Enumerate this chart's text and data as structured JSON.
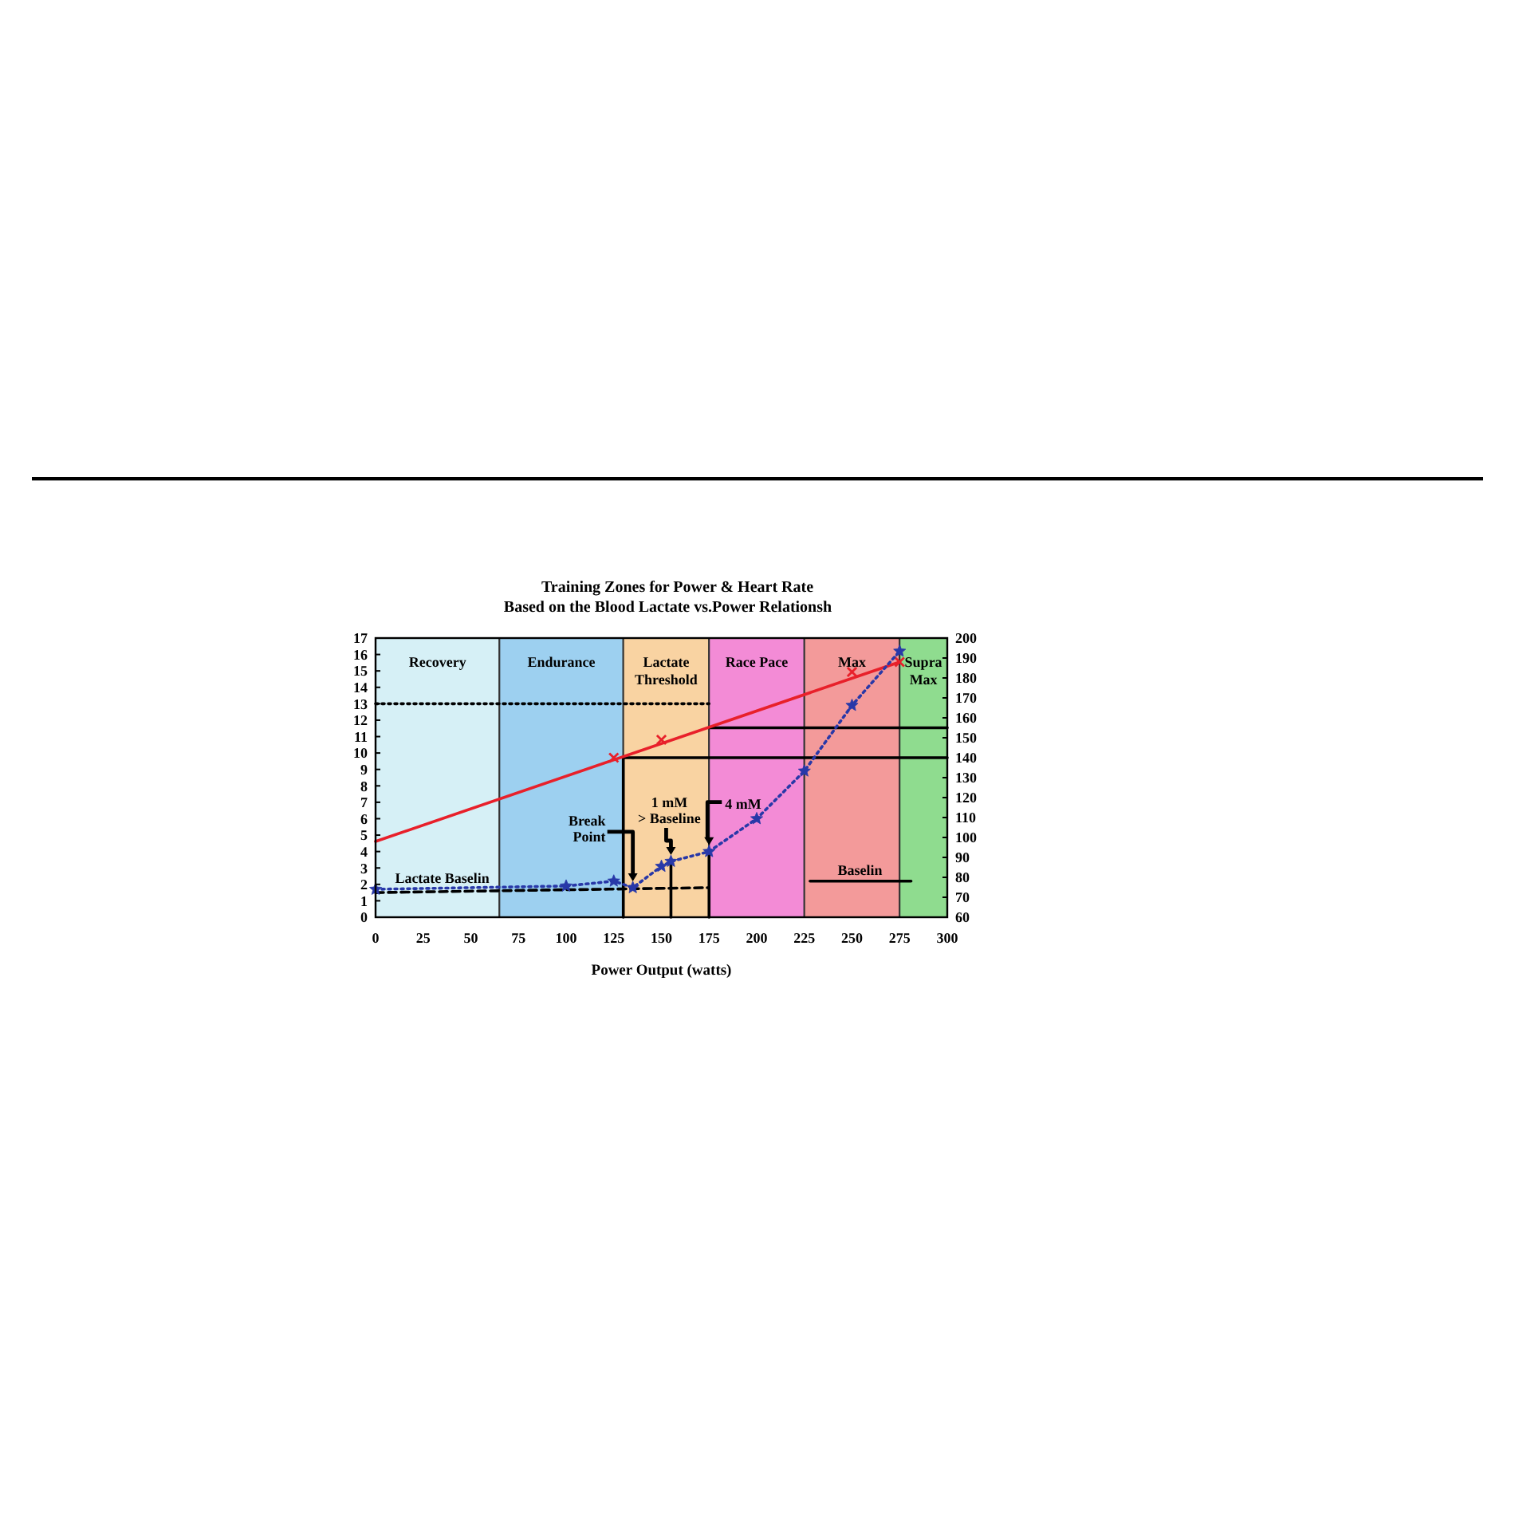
{
  "chart_data": {
    "type": "line",
    "title": "Training Zones for Power & Heart Rate",
    "subtitle": "Based on the Blood Lactate vs.Power Relationsh",
    "xlabel": "Power Output (watts)",
    "xlim": [
      0,
      300
    ],
    "xticks": [
      0,
      25,
      50,
      75,
      100,
      125,
      150,
      175,
      200,
      225,
      250,
      275,
      300
    ],
    "ylim": [
      0,
      17
    ],
    "yticks": [
      0,
      1,
      2,
      3,
      4,
      5,
      6,
      7,
      8,
      9,
      10,
      11,
      12,
      13,
      14,
      15,
      16,
      17
    ],
    "y2lim": [
      60,
      200
    ],
    "y2ticks": [
      60,
      70,
      80,
      90,
      100,
      110,
      120,
      130,
      140,
      150,
      160,
      170,
      180,
      190,
      200
    ],
    "bands": [
      {
        "axis": "x",
        "from": 0,
        "to": 65,
        "label": "Recovery",
        "color": "#d6f0f6"
      },
      {
        "axis": "x",
        "from": 65,
        "to": 130,
        "label": "Endurance",
        "color": "#9dd0f0"
      },
      {
        "axis": "x",
        "from": 130,
        "to": 175,
        "label": "Lactate Threshold",
        "color": "#f9d3a2"
      },
      {
        "axis": "x",
        "from": 175,
        "to": 225,
        "label": "Race Pace",
        "color": "#f38bd6"
      },
      {
        "axis": "x",
        "from": 225,
        "to": 275,
        "label": "Max",
        "color": "#f39a9a"
      },
      {
        "axis": "x",
        "from": 275,
        "to": 300,
        "label": "Supra Max",
        "color": "#8fdc8f"
      }
    ],
    "series": [
      {
        "axis": "y2",
        "color": "#000000",
        "x": [
          130,
          130,
          300
        ],
        "values": [
          60,
          140,
          140
        ]
      },
      {
        "axis": "y2",
        "color": "#000000",
        "x": [
          175,
          300
        ],
        "values": [
          155,
          155
        ]
      },
      {
        "color": "#000000",
        "x": [
          175,
          175
        ],
        "values": [
          0,
          4.0
        ]
      },
      {
        "color": "#000000",
        "x": [
          155,
          155
        ],
        "values": [
          0,
          3.4
        ]
      },
      {
        "color": "#000000",
        "line_style": "dotted",
        "x": [
          0,
          175
        ],
        "values": [
          13,
          13
        ]
      },
      {
        "color": "#000000",
        "line_style": "dashed",
        "x": [
          0,
          175
        ],
        "values": [
          1.5,
          1.8
        ]
      },
      {
        "color": "#000000",
        "x": [
          228,
          281
        ],
        "values": [
          2.2,
          2.2
        ]
      },
      {
        "axis": "y2",
        "color": "#e8202a",
        "x": [
          0,
          275
        ],
        "values": [
          98,
          188
        ]
      },
      {
        "type": "scatter",
        "axis": "y2",
        "color": "#e8202a",
        "marker": "cross",
        "x": [
          125,
          150,
          250,
          275
        ],
        "values": [
          140,
          149,
          183,
          188
        ]
      },
      {
        "color": "#2838a8",
        "line_style": "dotted",
        "marker": "star",
        "x": [
          0,
          100,
          125,
          135,
          150,
          155,
          175,
          200,
          225,
          250,
          275
        ],
        "values": [
          1.7,
          1.9,
          2.2,
          1.8,
          3.1,
          3.4,
          4.0,
          6.0,
          8.9,
          12.9,
          16.2
        ]
      }
    ],
    "annotations": [
      {
        "text": "Break Point",
        "x": 135,
        "y": 1.8
      },
      {
        "text": "1 mM > Baseline",
        "x": 155,
        "y": 3.4
      },
      {
        "text": "4 mM",
        "x": 175,
        "y": 4.0
      },
      {
        "text": "Lactate Baselin",
        "x": 35,
        "y": 1.5
      },
      {
        "text": "Baselin",
        "x": 250,
        "y": 2.2
      }
    ]
  }
}
